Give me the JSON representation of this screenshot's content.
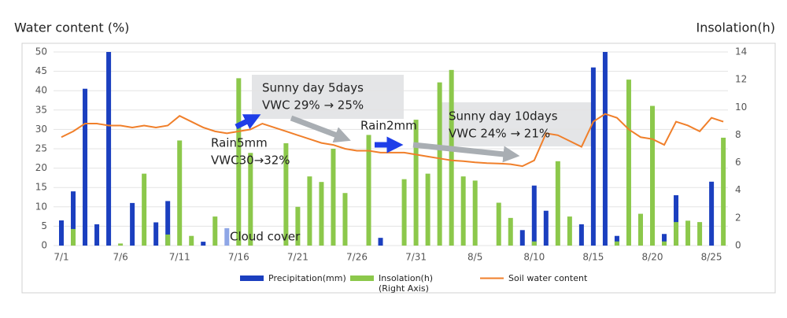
{
  "chart_data": {
    "type": "bar-line-combo",
    "y_label": "Water content (%)",
    "y2_label": "Insolation(h)",
    "categories": [
      "7/1",
      null,
      null,
      null,
      null,
      "7/6",
      null,
      null,
      null,
      null,
      "7/11",
      null,
      null,
      null,
      null,
      "7/16",
      null,
      null,
      null,
      null,
      "7/21",
      null,
      null,
      null,
      null,
      "7/26",
      null,
      null,
      null,
      null,
      "7/31",
      null,
      null,
      null,
      null,
      "8/5",
      null,
      null,
      null,
      null,
      "8/10",
      null,
      null,
      null,
      null,
      "8/15",
      null,
      null,
      null,
      null,
      "8/20",
      null,
      null,
      null,
      null,
      "8/25",
      null
    ],
    "ylim": [
      0,
      50
    ],
    "yticks": [
      0,
      5,
      10,
      15,
      20,
      25,
      30,
      35,
      40,
      45,
      50
    ],
    "y2lim": [
      0,
      14
    ],
    "y2ticks": [
      0,
      2,
      4,
      6,
      8,
      10,
      12,
      14
    ],
    "series": [
      {
        "name": "Precipitation(mm)",
        "kind": "bar",
        "color": "#1b3fbf",
        "highlight_index": 14,
        "highlight_color": "#8ea6e6",
        "values": [
          6.5,
          14,
          40.5,
          5.5,
          50,
          null,
          11,
          null,
          6,
          11.5,
          null,
          null,
          1,
          null,
          4.5,
          null,
          null,
          null,
          null,
          null,
          null,
          null,
          null,
          null,
          null,
          null,
          null,
          2,
          null,
          null,
          null,
          null,
          null,
          null,
          null,
          null,
          null,
          null,
          null,
          4,
          15.5,
          9,
          null,
          null,
          5.5,
          46,
          50,
          2.5,
          null,
          null,
          null,
          3,
          13,
          null,
          null,
          16.5,
          null
        ]
      },
      {
        "name": "Insolation(h)",
        "note": "(Right Axis)",
        "kind": "bar",
        "axis": "y2",
        "color": "#8cc84b",
        "values": [
          null,
          1.2,
          null,
          null,
          null,
          0.15,
          null,
          5.2,
          null,
          0.8,
          7.6,
          0.7,
          null,
          2.1,
          null,
          12.1,
          6.7,
          null,
          null,
          7.4,
          2.8,
          5.0,
          4.6,
          7.0,
          3.8,
          null,
          8.0,
          null,
          null,
          4.8,
          9.1,
          5.2,
          11.8,
          12.7,
          5.0,
          4.7,
          null,
          3.1,
          2.0,
          null,
          0.3,
          null,
          6.1,
          2.1,
          null,
          null,
          null,
          0.3,
          12.0,
          2.3,
          10.1,
          0.3,
          1.7,
          1.8,
          1.7,
          null,
          7.8
        ]
      },
      {
        "name": "Soil water content",
        "kind": "line",
        "color": "#f07f2a",
        "values": [
          28,
          29.5,
          31.5,
          31.5,
          31,
          31,
          30.5,
          31,
          30.5,
          31,
          33.5,
          32,
          30.5,
          29.5,
          29,
          29.5,
          30,
          31.5,
          30.5,
          29.5,
          28.5,
          27.5,
          26.5,
          26,
          25,
          24.5,
          24.5,
          24,
          24,
          24,
          23.5,
          23,
          22.5,
          22,
          21.8,
          21.5,
          21.3,
          21.2,
          21,
          20.5,
          22,
          29,
          28.5,
          27,
          25.5,
          32,
          34,
          33,
          30,
          28,
          27.5,
          26,
          32,
          31,
          29.5,
          33,
          32
        ]
      }
    ],
    "annotations": [
      "Sunny day 5days",
      "VWC 29% → 25%",
      "Rain2mm",
      "Sunny day 10days",
      "VWC 24% → 21%",
      "Rain5mm",
      "VWC30→32%",
      "Cloud cover"
    ]
  }
}
